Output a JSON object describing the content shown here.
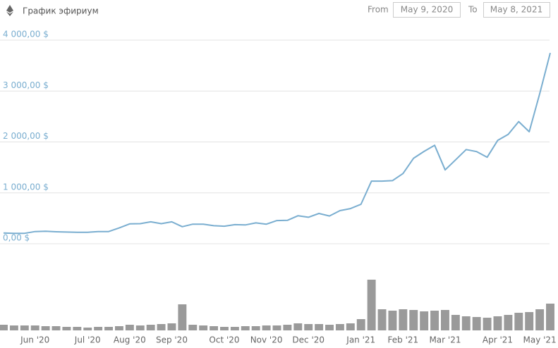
{
  "controls": {
    "from_label": "From",
    "from_value": "May 9, 2020",
    "to_label": "To",
    "to_value": "May 8, 2021"
  },
  "chart_data": {
    "type": "line",
    "title": "График эфириум",
    "categories": [
      null,
      null,
      null,
      "Jun '20",
      null,
      null,
      null,
      null,
      "Jul '20",
      null,
      null,
      null,
      "Aug '20",
      null,
      null,
      null,
      "Sep '20",
      null,
      null,
      null,
      null,
      "Oct '20",
      null,
      null,
      null,
      "Nov '20",
      null,
      null,
      null,
      "Dec '20",
      null,
      null,
      null,
      null,
      "Jan '21",
      null,
      null,
      null,
      "Feb '21",
      null,
      null,
      null,
      "Mar '21",
      null,
      null,
      null,
      null,
      "Apr '21",
      null,
      null,
      null,
      "May '21",
      null
    ],
    "series": [
      {
        "color": "#7aaed0",
        "values": [
          210,
          205,
          205,
          240,
          245,
          235,
          230,
          225,
          225,
          240,
          240,
          310,
          390,
          395,
          430,
          395,
          430,
          335,
          385,
          385,
          355,
          345,
          375,
          370,
          410,
          385,
          455,
          460,
          550,
          520,
          595,
          545,
          650,
          690,
          775,
          1230,
          1230,
          1240,
          1380,
          1680,
          1815,
          1935,
          1450,
          1650,
          1850,
          1810,
          1700,
          2030,
          2150,
          2400,
          2200,
          2950,
          3750
        ]
      }
    ],
    "volume": {
      "color": "#9a9a9a",
      "values": [
        8,
        7,
        7,
        7,
        6,
        6,
        5,
        5,
        4,
        5,
        5,
        6,
        8,
        7,
        8,
        9,
        10,
        37,
        8,
        7,
        6,
        5,
        5,
        6,
        6,
        7,
        7,
        8,
        10,
        9,
        9,
        8,
        9,
        10,
        16,
        72,
        30,
        28,
        30,
        29,
        27,
        28,
        29,
        22,
        20,
        19,
        18,
        20,
        22,
        25,
        26,
        30,
        38
      ]
    },
    "ylim": [
      0,
      4000
    ],
    "yticks": [
      {
        "value": 0,
        "label": "0,00 $"
      },
      {
        "value": 1000,
        "label": "1 000,00 $"
      },
      {
        "value": 2000,
        "label": "2 000,00 $"
      },
      {
        "value": 3000,
        "label": "3 000,00 $"
      },
      {
        "value": 4000,
        "label": "4 000,00 $"
      }
    ],
    "grid": true
  }
}
